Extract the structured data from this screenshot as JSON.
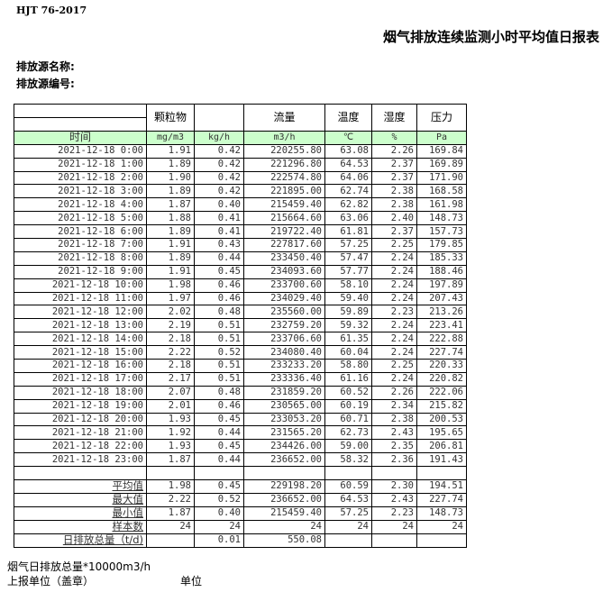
{
  "header": {
    "standard": "HJT  76-2017",
    "title": "烟气排放连续监测小时平均值日报表",
    "source_name_label": "排放源名称:",
    "source_no_label": "排放源编号:"
  },
  "table": {
    "columns": [
      "颗粒物",
      "",
      "流量",
      "温度",
      "湿度",
      "压力"
    ],
    "time_label": "时间",
    "units": [
      "mg/m3",
      "kg/h",
      "m3/h",
      "℃",
      "%",
      "Pa"
    ],
    "rows": [
      [
        "2021-12-18 0:00",
        "1.91",
        "0.42",
        "220255.80",
        "63.08",
        "2.26",
        "169.84"
      ],
      [
        "2021-12-18 1:00",
        "1.89",
        "0.42",
        "221296.80",
        "64.53",
        "2.37",
        "169.89"
      ],
      [
        "2021-12-18 2:00",
        "1.90",
        "0.42",
        "222574.80",
        "64.06",
        "2.37",
        "171.90"
      ],
      [
        "2021-12-18 3:00",
        "1.89",
        "0.42",
        "221895.00",
        "62.74",
        "2.38",
        "168.58"
      ],
      [
        "2021-12-18 4:00",
        "1.87",
        "0.40",
        "215459.40",
        "62.82",
        "2.38",
        "161.98"
      ],
      [
        "2021-12-18 5:00",
        "1.88",
        "0.41",
        "215664.60",
        "63.06",
        "2.40",
        "148.73"
      ],
      [
        "2021-12-18 6:00",
        "1.89",
        "0.41",
        "219722.40",
        "61.81",
        "2.37",
        "157.73"
      ],
      [
        "2021-12-18 7:00",
        "1.91",
        "0.43",
        "227817.60",
        "57.25",
        "2.25",
        "179.85"
      ],
      [
        "2021-12-18 8:00",
        "1.89",
        "0.44",
        "233450.40",
        "57.47",
        "2.24",
        "185.33"
      ],
      [
        "2021-12-18 9:00",
        "1.91",
        "0.45",
        "234093.60",
        "57.77",
        "2.24",
        "188.46"
      ],
      [
        "2021-12-18 10:00",
        "1.98",
        "0.46",
        "233700.60",
        "58.10",
        "2.24",
        "197.89"
      ],
      [
        "2021-12-18 11:00",
        "1.97",
        "0.46",
        "234029.40",
        "59.40",
        "2.24",
        "207.43"
      ],
      [
        "2021-12-18 12:00",
        "2.02",
        "0.48",
        "235560.00",
        "59.89",
        "2.23",
        "213.26"
      ],
      [
        "2021-12-18 13:00",
        "2.19",
        "0.51",
        "232759.20",
        "59.32",
        "2.24",
        "223.41"
      ],
      [
        "2021-12-18 14:00",
        "2.18",
        "0.51",
        "233706.60",
        "61.35",
        "2.24",
        "222.88"
      ],
      [
        "2021-12-18 15:00",
        "2.22",
        "0.52",
        "234080.40",
        "60.04",
        "2.24",
        "227.74"
      ],
      [
        "2021-12-18 16:00",
        "2.18",
        "0.51",
        "233233.20",
        "58.80",
        "2.25",
        "220.33"
      ],
      [
        "2021-12-18 17:00",
        "2.17",
        "0.51",
        "233336.40",
        "61.16",
        "2.24",
        "220.82"
      ],
      [
        "2021-12-18 18:00",
        "2.07",
        "0.48",
        "231859.20",
        "60.52",
        "2.26",
        "222.06"
      ],
      [
        "2021-12-18 19:00",
        "2.01",
        "0.46",
        "230565.00",
        "60.19",
        "2.34",
        "215.82"
      ],
      [
        "2021-12-18 20:00",
        "1.93",
        "0.45",
        "233053.20",
        "60.71",
        "2.38",
        "200.53"
      ],
      [
        "2021-12-18 21:00",
        "1.92",
        "0.44",
        "231565.20",
        "62.73",
        "2.43",
        "195.65"
      ],
      [
        "2021-12-18 22:00",
        "1.93",
        "0.45",
        "234426.00",
        "59.00",
        "2.35",
        "206.81"
      ],
      [
        "2021-12-18 23:00",
        "1.87",
        "0.44",
        "236652.00",
        "58.32",
        "2.36",
        "191.43"
      ]
    ],
    "stats": [
      [
        "平均值",
        "1.98",
        "0.45",
        "229198.20",
        "60.59",
        "2.30",
        "194.51"
      ],
      [
        "最大值",
        "2.22",
        "0.52",
        "236652.00",
        "64.53",
        "2.43",
        "227.74"
      ],
      [
        "最小值",
        "1.87",
        "0.40",
        "215459.40",
        "57.25",
        "2.23",
        "148.73"
      ],
      [
        "样本数",
        "24",
        "24",
        "24",
        "24",
        "24",
        "24"
      ],
      [
        "日排放总量（t/d)",
        "",
        "0.01",
        "550.08",
        "",
        "",
        ""
      ]
    ]
  },
  "footer": {
    "note": "烟气日排放总量*10000m3/h",
    "reporter_label": "上报单位（盖章）",
    "unit_label": "单位"
  }
}
